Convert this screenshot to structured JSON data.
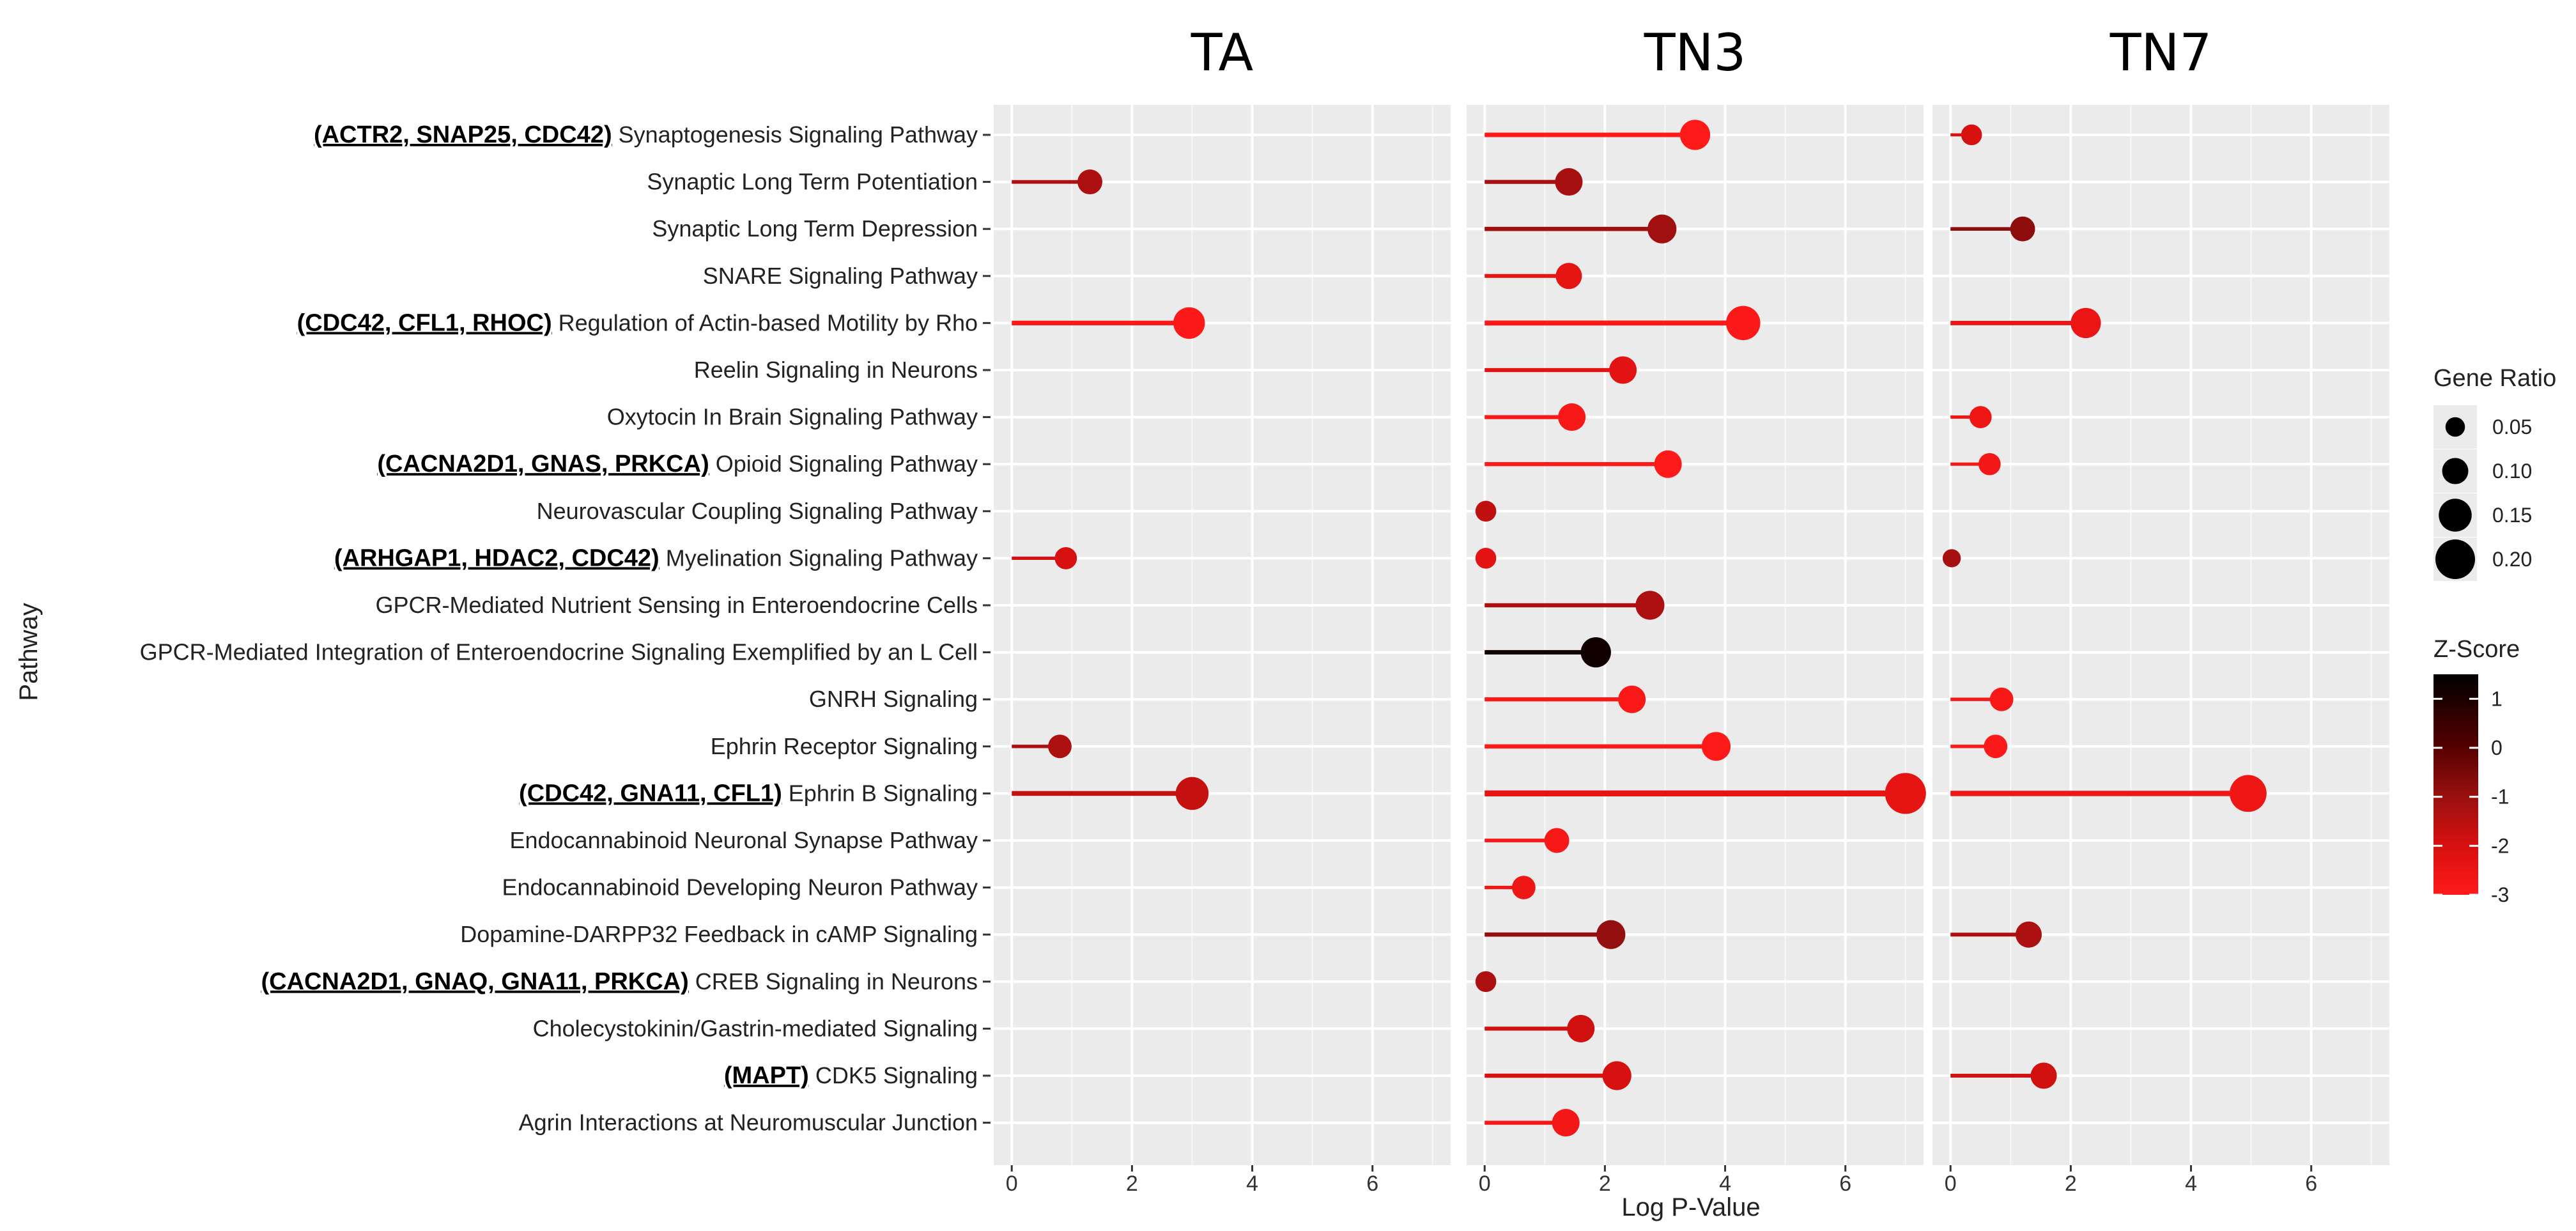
{
  "chart_data": {
    "type": "lollipop",
    "panels": [
      "TA",
      "TN3",
      "TN7"
    ],
    "xlabel": "Log P-Value",
    "ylabel": "Pathway",
    "xlim": [
      -0.3,
      7.3
    ],
    "x_ticks": [
      0,
      2,
      4,
      6
    ],
    "x_tick_labels": [
      "0",
      "2",
      "4",
      "6"
    ],
    "legend_size_title": "Gene Ratio",
    "legend_size_values": [
      0.05,
      0.1,
      0.15,
      0.2
    ],
    "legend_size_labels": [
      "0.05",
      "0.10",
      "0.15",
      "0.20"
    ],
    "legend_color_title": "Z-Score",
    "legend_color_range": [
      -3,
      1.5
    ],
    "legend_color_ticks": [
      1,
      0,
      -1,
      -2,
      -3
    ],
    "legend_color_labels": [
      "1",
      "0",
      "-1",
      "-2",
      "-3"
    ],
    "color_low": "#ff1a1a",
    "color_high": "#000000",
    "pathways": [
      {
        "label": "Synaptogenesis Signaling Pathway",
        "genes": "(ACTR2, SNAP25, CDC42)",
        "TA": null,
        "TN3": {
          "x": 3.5,
          "z": -3,
          "r": 0.13
        },
        "TN7": {
          "x": 0.35,
          "z": -2.0,
          "r": 0.06
        }
      },
      {
        "label": "Synaptic Long Term Potentiation",
        "genes": "",
        "TA": {
          "x": 1.3,
          "z": -1.3,
          "r": 0.09
        },
        "TN3": {
          "x": 1.4,
          "z": -1.2,
          "r": 0.11
        },
        "TN7": null
      },
      {
        "label": "Synaptic Long Term Depression",
        "genes": "",
        "TA": null,
        "TN3": {
          "x": 2.95,
          "z": -1.1,
          "r": 0.12
        },
        "TN7": {
          "x": 1.2,
          "z": -0.8,
          "r": 0.09
        }
      },
      {
        "label": "SNARE Signaling Pathway",
        "genes": "",
        "TA": null,
        "TN3": {
          "x": 1.4,
          "z": -2.4,
          "r": 0.1
        },
        "TN7": null
      },
      {
        "label": "Regulation of Actin-based Motility by Rho",
        "genes": "(CDC42, CFL1, RHOC)",
        "TA": {
          "x": 2.95,
          "z": -2.9,
          "r": 0.14
        },
        "TN3": {
          "x": 4.3,
          "z": -2.9,
          "r": 0.16
        },
        "TN7": {
          "x": 2.25,
          "z": -2.5,
          "r": 0.13
        }
      },
      {
        "label": "Reelin Signaling in Neurons",
        "genes": "",
        "TA": null,
        "TN3": {
          "x": 2.3,
          "z": -2.3,
          "r": 0.11
        },
        "TN7": null
      },
      {
        "label": "Oxytocin In Brain Signaling Pathway",
        "genes": "",
        "TA": null,
        "TN3": {
          "x": 1.45,
          "z": -2.8,
          "r": 0.11
        },
        "TN7": {
          "x": 0.5,
          "z": -2.6,
          "r": 0.07
        }
      },
      {
        "label": "Opioid Signaling Pathway",
        "genes": "(CACNA2D1, GNAS, PRKCA)",
        "TA": null,
        "TN3": {
          "x": 3.05,
          "z": -3,
          "r": 0.11
        },
        "TN7": {
          "x": 0.65,
          "z": -2.7,
          "r": 0.07
        }
      },
      {
        "label": "Neurovascular Coupling Signaling Pathway",
        "genes": "",
        "TA": null,
        "TN3": {
          "x": 0.02,
          "z": -1.6,
          "r": 0.06
        },
        "TN7": null
      },
      {
        "label": "Myelination Signaling Pathway",
        "genes": "(ARHGAP1, HDAC2, CDC42)",
        "TA": {
          "x": 0.9,
          "z": -2.0,
          "r": 0.07
        },
        "TN3": {
          "x": 0.02,
          "z": -2.3,
          "r": 0.06
        },
        "TN7": {
          "x": 0.02,
          "z": -1.2,
          "r": 0.04
        }
      },
      {
        "label": "GPCR-Mediated Nutrient Sensing in Enteroendocrine Cells",
        "genes": "",
        "TA": null,
        "TN3": {
          "x": 2.75,
          "z": -1.3,
          "r": 0.12
        },
        "TN7": null
      },
      {
        "label": "GPCR-Mediated Integration of Enteroendocrine Signaling Exemplified by an L Cell",
        "genes": "",
        "TA": null,
        "TN3": {
          "x": 1.85,
          "z": 1.2,
          "r": 0.13
        },
        "TN7": null
      },
      {
        "label": "GNRH Signaling",
        "genes": "",
        "TA": null,
        "TN3": {
          "x": 2.45,
          "z": -2.9,
          "r": 0.11
        },
        "TN7": {
          "x": 0.85,
          "z": -2.8,
          "r": 0.08
        }
      },
      {
        "label": "Ephrin Receptor Signaling",
        "genes": "",
        "TA": {
          "x": 0.8,
          "z": -1.3,
          "r": 0.08
        },
        "TN3": {
          "x": 3.85,
          "z": -3,
          "r": 0.12
        },
        "TN7": {
          "x": 0.75,
          "z": -2.9,
          "r": 0.08
        }
      },
      {
        "label": "Ephrin B Signaling",
        "genes": "(CDC42, GNA11, CFL1)",
        "TA": {
          "x": 3.0,
          "z": -1.7,
          "r": 0.15
        },
        "TN3": {
          "x": 7.0,
          "z": -2.4,
          "r": 0.21
        },
        "TN7": {
          "x": 4.95,
          "z": -2.6,
          "r": 0.18
        }
      },
      {
        "label": "Endocannabinoid Neuronal Synapse Pathway",
        "genes": "",
        "TA": null,
        "TN3": {
          "x": 1.2,
          "z": -2.8,
          "r": 0.09
        },
        "TN7": null
      },
      {
        "label": "Endocannabinoid Developing Neuron Pathway",
        "genes": "",
        "TA": null,
        "TN3": {
          "x": 0.65,
          "z": -2.6,
          "r": 0.08
        },
        "TN7": null
      },
      {
        "label": "Dopamine-DARPP32 Feedback in cAMP Signaling",
        "genes": "",
        "TA": null,
        "TN3": {
          "x": 2.1,
          "z": -0.9,
          "r": 0.12
        },
        "TN7": {
          "x": 1.3,
          "z": -1.3,
          "r": 0.1
        }
      },
      {
        "label": "CREB Signaling in Neurons",
        "genes": "(CACNA2D1, GNAQ, GNA11, PRKCA)",
        "TA": null,
        "TN3": {
          "x": 0.02,
          "z": -1.3,
          "r": 0.06
        },
        "TN7": null
      },
      {
        "label": "Cholecystokinin/Gastrin-mediated Signaling",
        "genes": "",
        "TA": null,
        "TN3": {
          "x": 1.6,
          "z": -1.9,
          "r": 0.11
        },
        "TN7": null
      },
      {
        "label": "CDK5 Signaling",
        "genes": "(MAPT)",
        "TA": null,
        "TN3": {
          "x": 2.2,
          "z": -2.0,
          "r": 0.12
        },
        "TN7": {
          "x": 1.55,
          "z": -1.9,
          "r": 0.1
        }
      },
      {
        "label": "Agrin Interactions at Neuromuscular Junction",
        "genes": "",
        "TA": null,
        "TN3": {
          "x": 1.35,
          "z": -2.7,
          "r": 0.11
        },
        "TN7": null
      }
    ]
  }
}
